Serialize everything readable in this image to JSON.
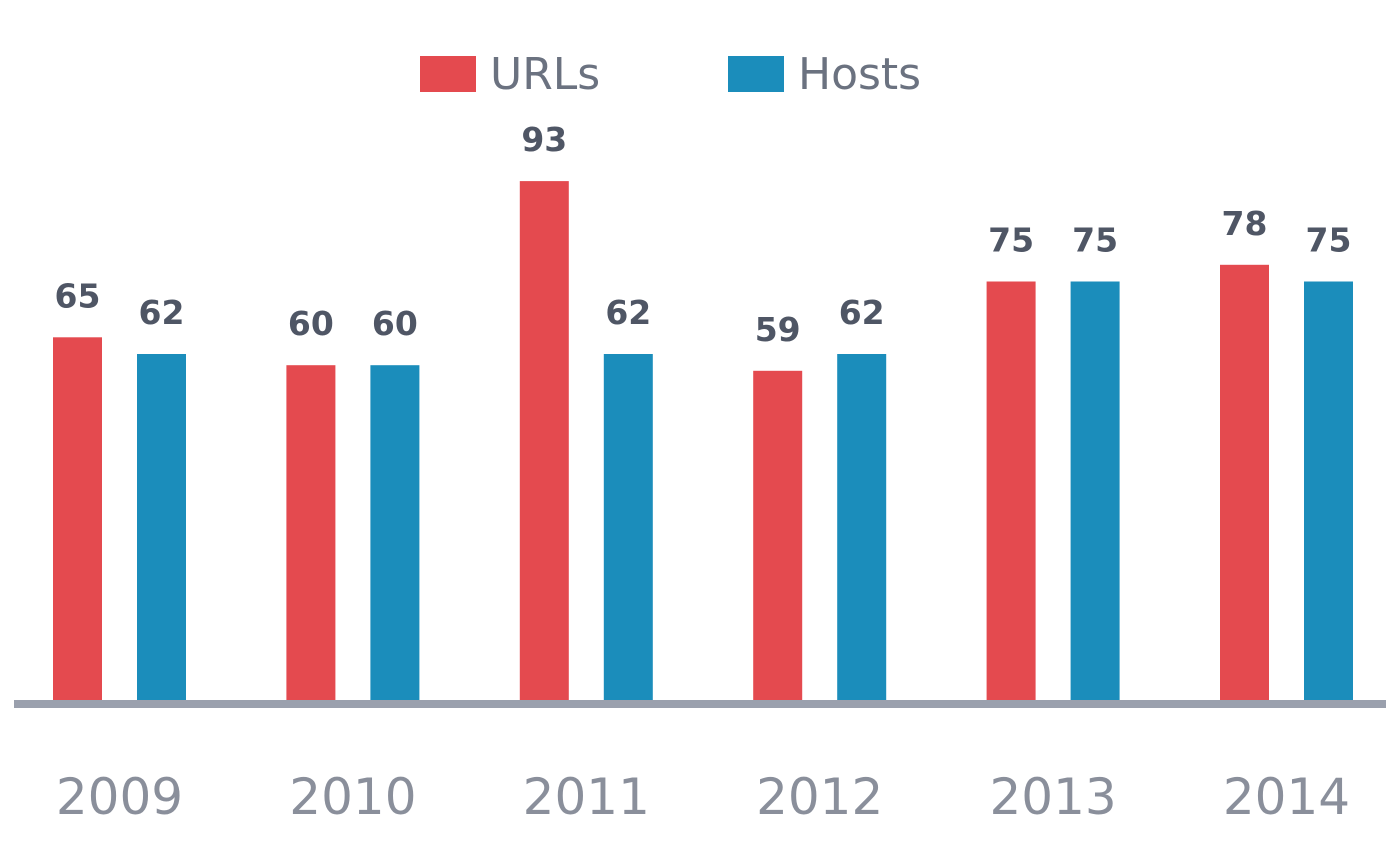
{
  "chart_data": {
    "type": "bar",
    "categories": [
      "2009",
      "2010",
      "2011",
      "2012",
      "2013",
      "2014"
    ],
    "series": [
      {
        "name": "URLs",
        "color": "#e44a4f",
        "values": [
          65,
          60,
          93,
          59,
          75,
          78
        ]
      },
      {
        "name": "Hosts",
        "color": "#1b8dbb",
        "values": [
          62,
          60,
          62,
          62,
          75,
          75
        ]
      }
    ],
    "title": "",
    "xlabel": "",
    "ylabel": "",
    "ylim": [
      0,
      100
    ],
    "grid": false,
    "legend_position": "top-center",
    "baseline_color": "#9aa0ad"
  }
}
